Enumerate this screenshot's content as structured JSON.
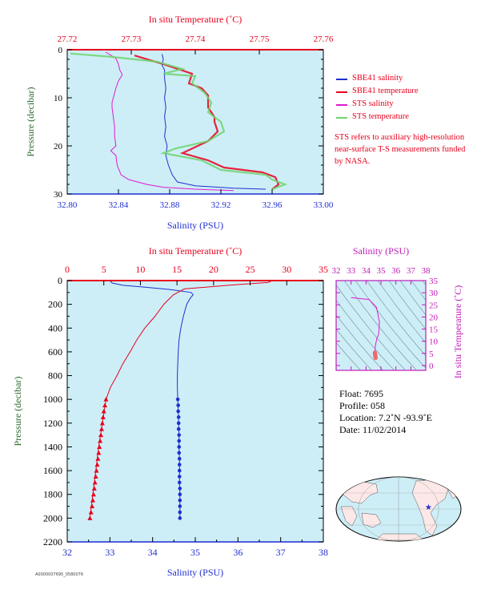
{
  "chart_data": [
    {
      "id": "near_surface",
      "type": "line",
      "top_axis_label": "In situ Temperature (˚C)",
      "xlabel": "Salinity (PSU)",
      "ylabel": "Pressure (decibar)",
      "xlim": [
        32.8,
        33.0
      ],
      "x_ticks": [
        "32.80",
        "32.84",
        "32.88",
        "32.92",
        "32.96",
        "33.00"
      ],
      "x_tick_values": [
        32.8,
        32.84,
        32.88,
        32.92,
        32.96,
        33.0
      ],
      "top_lim": [
        27.72,
        27.76
      ],
      "top_ticks": [
        "27.72",
        "27.73",
        "27.74",
        "27.75",
        "27.76"
      ],
      "top_tick_values": [
        27.72,
        27.73,
        27.74,
        27.75,
        27.76
      ],
      "ylim": [
        0,
        30
      ],
      "y_ticks": [
        "0",
        "10",
        "20",
        "30"
      ],
      "y_tick_values": [
        0,
        10,
        20,
        30
      ],
      "series": [
        {
          "name": "SBE41 salinity",
          "color": "#1f2fd0",
          "axis": "bottom",
          "points": [
            [
              32.874,
              0.9
            ],
            [
              32.875,
              2
            ],
            [
              32.874,
              3.2
            ],
            [
              32.876,
              4.2
            ],
            [
              32.876,
              6
            ],
            [
              32.877,
              8
            ],
            [
              32.876,
              10
            ],
            [
              32.877,
              12
            ],
            [
              32.876,
              14
            ],
            [
              32.877,
              16
            ],
            [
              32.876,
              18
            ],
            [
              32.878,
              20
            ],
            [
              32.877,
              22
            ],
            [
              32.879,
              24
            ],
            [
              32.882,
              26
            ],
            [
              32.886,
              27.5
            ],
            [
              32.9,
              28.3
            ],
            [
              32.93,
              28.8
            ],
            [
              32.955,
              29
            ]
          ]
        },
        {
          "name": "SBE41 temperature",
          "color": "#e8001c",
          "axis": "top",
          "points": [
            [
              27.7305,
              1.2
            ],
            [
              27.735,
              3
            ],
            [
              27.7395,
              5
            ],
            [
              27.739,
              7
            ],
            [
              27.741,
              8
            ],
            [
              27.742,
              9.5
            ],
            [
              27.742,
              12
            ],
            [
              27.743,
              14
            ],
            [
              27.743,
              15
            ],
            [
              27.7435,
              17
            ],
            [
              27.742,
              19
            ],
            [
              27.738,
              21.5
            ],
            [
              27.742,
              23
            ],
            [
              27.7445,
              24.5
            ],
            [
              27.7505,
              25.5
            ],
            [
              27.7525,
              26.5
            ],
            [
              27.753,
              28
            ],
            [
              27.752,
              29
            ]
          ]
        },
        {
          "name": "STS salinity",
          "color": "#e01ad0",
          "axis": "bottom",
          "points": [
            [
              32.83,
              0.5
            ],
            [
              32.838,
              1.8
            ],
            [
              32.84,
              3
            ],
            [
              32.841,
              4.2
            ],
            [
              32.843,
              5.2
            ],
            [
              32.84,
              6.5
            ],
            [
              32.838,
              8
            ],
            [
              32.836,
              10
            ],
            [
              32.835,
              11
            ],
            [
              32.835,
              12
            ],
            [
              32.836,
              14
            ],
            [
              32.837,
              16
            ],
            [
              32.837,
              18
            ],
            [
              32.838,
              20
            ],
            [
              32.834,
              21
            ],
            [
              32.838,
              22
            ],
            [
              32.839,
              24
            ],
            [
              32.842,
              26
            ],
            [
              32.848,
              27
            ],
            [
              32.862,
              28
            ],
            [
              32.875,
              28.6
            ],
            [
              32.9,
              29
            ],
            [
              32.93,
              29.3
            ]
          ]
        },
        {
          "name": "STS temperature",
          "color": "#6ed36e",
          "axis": "top",
          "points": [
            [
              27.7205,
              0.8
            ],
            [
              27.727,
              1.5
            ],
            [
              27.734,
              2.5
            ],
            [
              27.738,
              4
            ],
            [
              27.735,
              5
            ],
            [
              27.74,
              5.5
            ],
            [
              27.7395,
              7
            ],
            [
              27.7415,
              9
            ],
            [
              27.7425,
              11
            ],
            [
              27.742,
              13
            ],
            [
              27.744,
              15
            ],
            [
              27.7445,
              17
            ],
            [
              27.742,
              19
            ],
            [
              27.737,
              20.5
            ],
            [
              27.735,
              21.5
            ],
            [
              27.741,
              23
            ],
            [
              27.744,
              25
            ],
            [
              27.751,
              26
            ],
            [
              27.752,
              27
            ],
            [
              27.754,
              28
            ],
            [
              27.752,
              29
            ]
          ]
        }
      ]
    },
    {
      "id": "full_profile",
      "type": "line",
      "top_axis_label": "In situ Temperature (˚C)",
      "xlabel": "Salinity (PSU)",
      "ylabel": "Pressure (decibar)",
      "xlim": [
        32,
        38
      ],
      "x_ticks": [
        "32",
        "33",
        "34",
        "35",
        "36",
        "37",
        "38"
      ],
      "x_tick_values": [
        32,
        33,
        34,
        35,
        36,
        37,
        38
      ],
      "top_lim": [
        0,
        35
      ],
      "top_ticks": [
        "0",
        "5",
        "10",
        "15",
        "20",
        "25",
        "30",
        "35"
      ],
      "top_tick_values": [
        0,
        5,
        10,
        15,
        20,
        25,
        30,
        35
      ],
      "ylim": [
        0,
        2200
      ],
      "y_ticks": [
        "0",
        "200",
        "400",
        "600",
        "800",
        "1000",
        "1200",
        "1400",
        "1600",
        "1800",
        "2000",
        "2200"
      ],
      "y_tick_values": [
        0,
        200,
        400,
        600,
        800,
        1000,
        1200,
        1400,
        1600,
        1800,
        2000,
        2200
      ],
      "series": [
        {
          "name": "salinity",
          "color": "#1f2fd0",
          "axis": "bottom",
          "points": [
            [
              33.0,
              0
            ],
            [
              33.05,
              20
            ],
            [
              33.3,
              40
            ],
            [
              33.8,
              55
            ],
            [
              34.4,
              75
            ],
            [
              34.9,
              100
            ],
            [
              34.95,
              120
            ],
            [
              34.88,
              150
            ],
            [
              34.8,
              200
            ],
            [
              34.72,
              300
            ],
            [
              34.66,
              400
            ],
            [
              34.62,
              500
            ],
            [
              34.6,
              600
            ],
            [
              34.59,
              700
            ],
            [
              34.58,
              800
            ],
            [
              34.58,
              900
            ],
            [
              34.59,
              1000
            ],
            [
              34.6,
              1100
            ],
            [
              34.61,
              1200
            ],
            [
              34.62,
              1300
            ],
            [
              34.62,
              1400
            ],
            [
              34.63,
              1500
            ],
            [
              34.63,
              1600
            ],
            [
              34.63,
              1700
            ],
            [
              34.64,
              1800
            ],
            [
              34.64,
              1900
            ],
            [
              34.64,
              2000
            ]
          ]
        },
        {
          "name": "temperature",
          "color": "#e8001c",
          "axis": "top",
          "points": [
            [
              28,
              0
            ],
            [
              27.5,
              15
            ],
            [
              22,
              40
            ],
            [
              16,
              70
            ],
            [
              14.5,
              120
            ],
            [
              13.2,
              200
            ],
            [
              12,
              300
            ],
            [
              10.6,
              400
            ],
            [
              9.5,
              500
            ],
            [
              8.6,
              600
            ],
            [
              7.6,
              700
            ],
            [
              6.8,
              800
            ],
            [
              5.9,
              900
            ],
            [
              5.3,
              1000
            ],
            [
              4.8,
              1200
            ],
            [
              4.3,
              1400
            ],
            [
              3.9,
              1600
            ],
            [
              3.5,
              1800
            ],
            [
              3.1,
              2000
            ]
          ]
        }
      ],
      "marker_series": [
        {
          "name": "salinity samples",
          "color": "#1f2fd0",
          "axis": "bottom",
          "marker": "circle",
          "points": [
            [
              34.59,
              1000
            ],
            [
              34.6,
              1050
            ],
            [
              34.6,
              1100
            ],
            [
              34.61,
              1150
            ],
            [
              34.61,
              1200
            ],
            [
              34.61,
              1250
            ],
            [
              34.62,
              1300
            ],
            [
              34.62,
              1350
            ],
            [
              34.62,
              1400
            ],
            [
              34.62,
              1450
            ],
            [
              34.63,
              1500
            ],
            [
              34.63,
              1550
            ],
            [
              34.63,
              1600
            ],
            [
              34.63,
              1650
            ],
            [
              34.63,
              1700
            ],
            [
              34.64,
              1750
            ],
            [
              34.64,
              1800
            ],
            [
              34.64,
              1850
            ],
            [
              34.64,
              1900
            ],
            [
              34.64,
              1950
            ],
            [
              34.64,
              2000
            ]
          ]
        },
        {
          "name": "temperature samples",
          "color": "#e8001c",
          "axis": "top",
          "marker": "triangle",
          "points": [
            [
              5.3,
              1000
            ],
            [
              5.15,
              1050
            ],
            [
              5.0,
              1100
            ],
            [
              4.9,
              1150
            ],
            [
              4.8,
              1200
            ],
            [
              4.7,
              1250
            ],
            [
              4.6,
              1300
            ],
            [
              4.5,
              1350
            ],
            [
              4.4,
              1400
            ],
            [
              4.3,
              1450
            ],
            [
              4.2,
              1500
            ],
            [
              4.1,
              1550
            ],
            [
              4.0,
              1600
            ],
            [
              3.9,
              1650
            ],
            [
              3.8,
              1700
            ],
            [
              3.7,
              1750
            ],
            [
              3.6,
              1800
            ],
            [
              3.5,
              1850
            ],
            [
              3.4,
              1900
            ],
            [
              3.25,
              1950
            ],
            [
              3.1,
              2000
            ]
          ]
        }
      ]
    },
    {
      "id": "ts_diagram",
      "type": "line",
      "top_axis_label": "Salinity (PSU)",
      "ylabel": "In situ Temperature (˚C)",
      "xlim": [
        32,
        38
      ],
      "top_ticks": [
        "32",
        "33",
        "34",
        "35",
        "36",
        "37",
        "38"
      ],
      "top_tick_values": [
        32,
        33,
        34,
        35,
        36,
        37,
        38
      ],
      "ylim": [
        -2,
        35
      ],
      "y_ticks": [
        "0",
        "5",
        "10",
        "15",
        "20",
        "25",
        "30",
        "35"
      ],
      "y_tick_values": [
        0,
        5,
        10,
        15,
        20,
        25,
        30,
        35
      ],
      "series": [
        {
          "name": "T-S curve",
          "color": "#e01ad0",
          "points": [
            [
              33.0,
              28
            ],
            [
              34.2,
              27.2
            ],
            [
              34.7,
              24
            ],
            [
              34.9,
              18
            ],
            [
              34.85,
              13
            ],
            [
              34.72,
              11
            ],
            [
              34.62,
              8
            ],
            [
              34.6,
              6
            ],
            [
              34.6,
              4
            ]
          ]
        }
      ],
      "marker_series": [
        {
          "name": "T-S samples",
          "color": "#f06a6a",
          "marker": "circle",
          "points": [
            [
              34.59,
              5.3
            ],
            [
              34.6,
              5.0
            ],
            [
              34.6,
              4.8
            ],
            [
              34.61,
              4.6
            ],
            [
              34.61,
              4.4
            ],
            [
              34.62,
              4.2
            ],
            [
              34.62,
              4.0
            ],
            [
              34.63,
              3.8
            ],
            [
              34.63,
              3.6
            ],
            [
              34.64,
              3.4
            ],
            [
              34.64,
              3.1
            ]
          ]
        }
      ]
    }
  ],
  "legend": [
    {
      "label": "SBE41 salinity",
      "color": "#1f2fd0"
    },
    {
      "label": "SBE41 temperature",
      "color": "#e8001c"
    },
    {
      "label": "STS salinity",
      "color": "#e01ad0"
    },
    {
      "label": "STS temperature",
      "color": "#6ed36e"
    }
  ],
  "note": "STS refers to auxiliary high-resolution near-surface T-S measurements funded by NASA.",
  "float_info": {
    "float": "Float:  7695",
    "profile": "Profile:  058",
    "location": "Location:  7.2˚N  -93.9˚E",
    "date": "Date:  11/02/2014"
  },
  "footer_code": "A0000007695_0580076",
  "map": {
    "marker_lon": -93.9,
    "marker_lat": 7.2,
    "marker_color": "#1f2fd0"
  },
  "colors": {
    "plot_bg": "#cdeef7",
    "red_axis": "#e8001c",
    "blue_axis": "#1f2fd0",
    "green_label": "#2a6a2a",
    "magenta_axis": "#c01ab8"
  }
}
